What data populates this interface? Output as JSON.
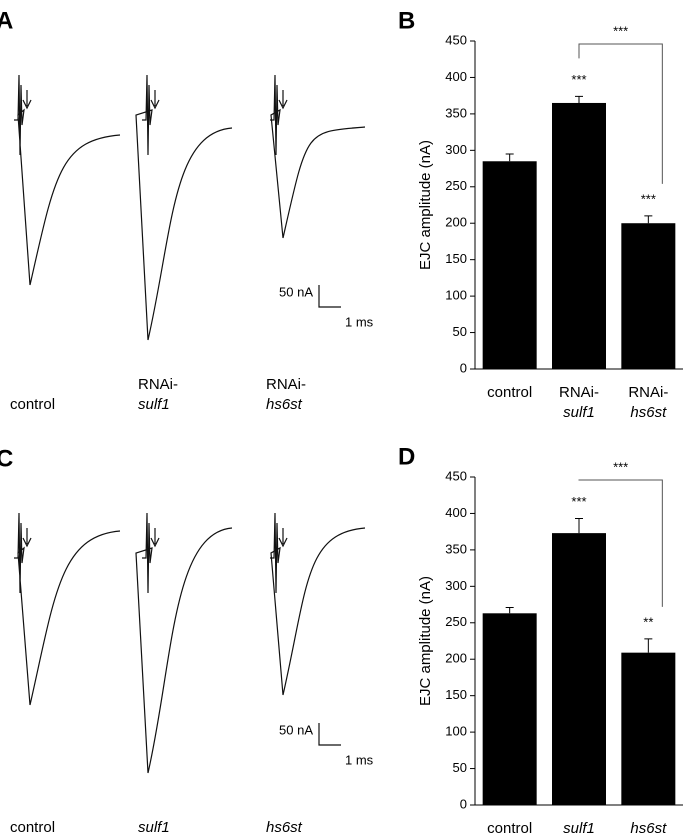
{
  "panel_a": {
    "letter": "A",
    "labels": [
      [
        "control"
      ],
      [
        "RNAi-",
        "sulf1"
      ],
      [
        "RNAi-",
        "hs6st"
      ]
    ],
    "italic_lines": [
      [
        false
      ],
      [
        false,
        true
      ],
      [
        false,
        true
      ]
    ],
    "scale_y": "50 nA",
    "scale_x": "1 ms"
  },
  "panel_c": {
    "letter": "C",
    "labels": [
      [
        "control"
      ],
      [
        "sulf1"
      ],
      [
        "hs6st"
      ]
    ],
    "italic_lines": [
      [
        false
      ],
      [
        true
      ],
      [
        true
      ]
    ],
    "scale_y": "50 nA",
    "scale_x": "1 ms"
  },
  "chart_data": [
    {
      "type": "bar",
      "letter": "B",
      "y_label": "EJC amplitude (nA)",
      "categories": [
        [
          "control"
        ],
        [
          "RNAi-",
          "sulf1"
        ],
        [
          "RNAi-",
          "hs6st"
        ]
      ],
      "italic_lines": [
        [
          false
        ],
        [
          false,
          true
        ],
        [
          false,
          true
        ]
      ],
      "values": [
        285,
        365,
        200
      ],
      "errors": [
        10,
        9,
        10
      ],
      "color": "#000000",
      "significance": [
        null,
        "***",
        "***"
      ],
      "comparison": {
        "label": "***",
        "between": [
          1,
          2
        ]
      },
      "ylim": [
        0,
        450
      ],
      "yticks": [
        0,
        50,
        100,
        150,
        200,
        250,
        300,
        350,
        400,
        450
      ]
    },
    {
      "type": "bar",
      "letter": "D",
      "y_label": "EJC amplitude (nA)",
      "categories": [
        [
          "control"
        ],
        [
          "sulf1"
        ],
        [
          "hs6st"
        ]
      ],
      "italic_lines": [
        [
          false
        ],
        [
          true
        ],
        [
          true
        ]
      ],
      "values": [
        263,
        373,
        209
      ],
      "errors": [
        8,
        20,
        19
      ],
      "color": "#000000",
      "significance": [
        null,
        "***",
        "**"
      ],
      "comparison": {
        "label": "***",
        "between": [
          1,
          2
        ]
      },
      "ylim": [
        0,
        450
      ],
      "yticks": [
        0,
        50,
        100,
        150,
        200,
        250,
        300,
        350,
        400,
        450
      ]
    }
  ]
}
